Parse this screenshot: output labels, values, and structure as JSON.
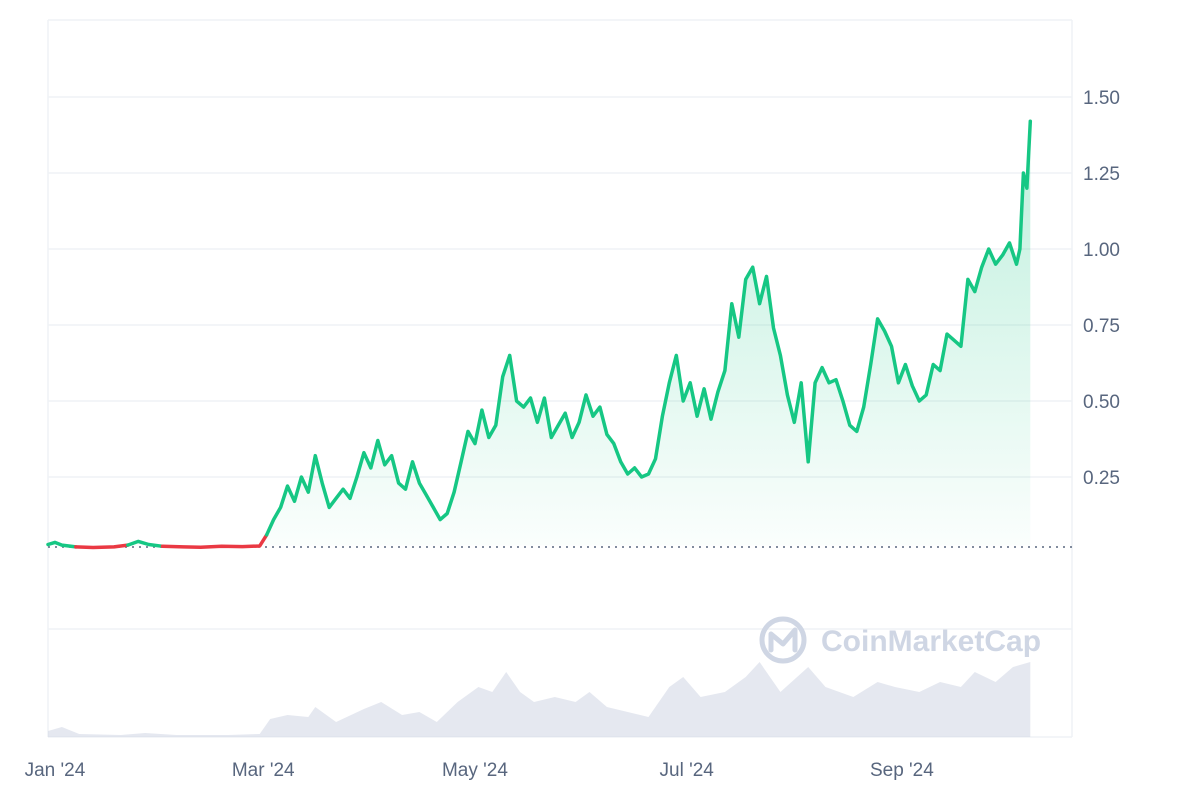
{
  "colors": {
    "up": "#16c784",
    "down": "#ea3943",
    "volume": "#cfd6e4",
    "grid": "#eff2f5",
    "tick_text": "#58667e",
    "watermark": "#cfd6e4"
  },
  "watermark": {
    "text": "CoinMarketCap",
    "icon": "coinmarketcap-logo-icon"
  },
  "chart_data": {
    "type": "area",
    "title": "",
    "xlabel": "",
    "ylabel": "",
    "grid": true,
    "legend": "none",
    "baseline_price": 0.025,
    "x_ticks": [
      {
        "label": "Jan '24",
        "date": "2024-01-01"
      },
      {
        "label": "Mar '24",
        "date": "2024-03-01"
      },
      {
        "label": "May '24",
        "date": "2024-05-01"
      },
      {
        "label": "Jul '24",
        "date": "2024-07-01"
      },
      {
        "label": "Sep '24",
        "date": "2024-09-01"
      }
    ],
    "y_ticks": [
      {
        "label": "1.50",
        "value": 1.5
      },
      {
        "label": "1.25",
        "value": 1.25
      },
      {
        "label": "1.00",
        "value": 1.0
      },
      {
        "label": "0.75",
        "value": 0.75
      },
      {
        "label": "0.50",
        "value": 0.5
      },
      {
        "label": "0.25",
        "value": 0.25
      }
    ],
    "xlim": [
      "2023-12-30",
      "2024-10-20"
    ],
    "ylim": [
      -0.3,
      1.75
    ],
    "series": [
      {
        "values": [
          [
            "2023-12-30",
            0.028
          ],
          [
            "2024-01-01",
            0.035
          ],
          [
            "2024-01-03",
            0.026
          ],
          [
            "2024-01-07",
            0.02
          ],
          [
            "2024-01-12",
            0.018
          ],
          [
            "2024-01-18",
            0.02
          ],
          [
            "2024-01-22",
            0.026
          ],
          [
            "2024-01-25",
            0.038
          ],
          [
            "2024-01-28",
            0.028
          ],
          [
            "2024-02-01",
            0.022
          ],
          [
            "2024-02-07",
            0.02
          ],
          [
            "2024-02-12",
            0.019
          ],
          [
            "2024-02-18",
            0.022
          ],
          [
            "2024-02-24",
            0.021
          ],
          [
            "2024-02-29",
            0.023
          ],
          [
            "2024-03-02",
            0.06
          ],
          [
            "2024-03-04",
            0.11
          ],
          [
            "2024-03-06",
            0.15
          ],
          [
            "2024-03-08",
            0.22
          ],
          [
            "2024-03-10",
            0.17
          ],
          [
            "2024-03-12",
            0.25
          ],
          [
            "2024-03-14",
            0.2
          ],
          [
            "2024-03-16",
            0.32
          ],
          [
            "2024-03-18",
            0.23
          ],
          [
            "2024-03-20",
            0.15
          ],
          [
            "2024-03-22",
            0.18
          ],
          [
            "2024-03-24",
            0.21
          ],
          [
            "2024-03-26",
            0.18
          ],
          [
            "2024-03-28",
            0.25
          ],
          [
            "2024-03-30",
            0.33
          ],
          [
            "2024-04-01",
            0.28
          ],
          [
            "2024-04-03",
            0.37
          ],
          [
            "2024-04-05",
            0.29
          ],
          [
            "2024-04-07",
            0.32
          ],
          [
            "2024-04-09",
            0.23
          ],
          [
            "2024-04-11",
            0.21
          ],
          [
            "2024-04-13",
            0.3
          ],
          [
            "2024-04-15",
            0.23
          ],
          [
            "2024-04-17",
            0.19
          ],
          [
            "2024-04-19",
            0.15
          ],
          [
            "2024-04-21",
            0.11
          ],
          [
            "2024-04-23",
            0.13
          ],
          [
            "2024-04-25",
            0.2
          ],
          [
            "2024-04-27",
            0.3
          ],
          [
            "2024-04-29",
            0.4
          ],
          [
            "2024-05-01",
            0.36
          ],
          [
            "2024-05-03",
            0.47
          ],
          [
            "2024-05-05",
            0.38
          ],
          [
            "2024-05-07",
            0.42
          ],
          [
            "2024-05-09",
            0.58
          ],
          [
            "2024-05-11",
            0.65
          ],
          [
            "2024-05-13",
            0.5
          ],
          [
            "2024-05-15",
            0.48
          ],
          [
            "2024-05-17",
            0.51
          ],
          [
            "2024-05-19",
            0.43
          ],
          [
            "2024-05-21",
            0.51
          ],
          [
            "2024-05-23",
            0.38
          ],
          [
            "2024-05-25",
            0.42
          ],
          [
            "2024-05-27",
            0.46
          ],
          [
            "2024-05-29",
            0.38
          ],
          [
            "2024-05-31",
            0.43
          ],
          [
            "2024-06-02",
            0.52
          ],
          [
            "2024-06-04",
            0.45
          ],
          [
            "2024-06-06",
            0.48
          ],
          [
            "2024-06-08",
            0.39
          ],
          [
            "2024-06-10",
            0.36
          ],
          [
            "2024-06-12",
            0.3
          ],
          [
            "2024-06-14",
            0.26
          ],
          [
            "2024-06-16",
            0.28
          ],
          [
            "2024-06-18",
            0.25
          ],
          [
            "2024-06-20",
            0.26
          ],
          [
            "2024-06-22",
            0.31
          ],
          [
            "2024-06-24",
            0.45
          ],
          [
            "2024-06-26",
            0.56
          ],
          [
            "2024-06-28",
            0.65
          ],
          [
            "2024-06-30",
            0.5
          ],
          [
            "2024-07-02",
            0.56
          ],
          [
            "2024-07-04",
            0.45
          ],
          [
            "2024-07-06",
            0.54
          ],
          [
            "2024-07-08",
            0.44
          ],
          [
            "2024-07-10",
            0.53
          ],
          [
            "2024-07-12",
            0.6
          ],
          [
            "2024-07-14",
            0.82
          ],
          [
            "2024-07-16",
            0.71
          ],
          [
            "2024-07-18",
            0.9
          ],
          [
            "2024-07-20",
            0.94
          ],
          [
            "2024-07-22",
            0.82
          ],
          [
            "2024-07-24",
            0.91
          ],
          [
            "2024-07-26",
            0.74
          ],
          [
            "2024-07-28",
            0.65
          ],
          [
            "2024-07-30",
            0.52
          ],
          [
            "2024-08-01",
            0.43
          ],
          [
            "2024-08-03",
            0.56
          ],
          [
            "2024-08-05",
            0.3
          ],
          [
            "2024-08-07",
            0.56
          ],
          [
            "2024-08-09",
            0.61
          ],
          [
            "2024-08-11",
            0.56
          ],
          [
            "2024-08-13",
            0.57
          ],
          [
            "2024-08-15",
            0.5
          ],
          [
            "2024-08-17",
            0.42
          ],
          [
            "2024-08-19",
            0.4
          ],
          [
            "2024-08-21",
            0.48
          ],
          [
            "2024-08-23",
            0.62
          ],
          [
            "2024-08-25",
            0.77
          ],
          [
            "2024-08-27",
            0.73
          ],
          [
            "2024-08-29",
            0.68
          ],
          [
            "2024-08-31",
            0.56
          ],
          [
            "2024-09-02",
            0.62
          ],
          [
            "2024-09-04",
            0.55
          ],
          [
            "2024-09-06",
            0.5
          ],
          [
            "2024-09-08",
            0.52
          ],
          [
            "2024-09-10",
            0.62
          ],
          [
            "2024-09-12",
            0.6
          ],
          [
            "2024-09-14",
            0.72
          ],
          [
            "2024-09-16",
            0.7
          ],
          [
            "2024-09-18",
            0.68
          ],
          [
            "2024-09-20",
            0.9
          ],
          [
            "2024-09-22",
            0.86
          ],
          [
            "2024-09-24",
            0.94
          ],
          [
            "2024-09-26",
            1.0
          ],
          [
            "2024-09-28",
            0.95
          ],
          [
            "2024-09-30",
            0.98
          ],
          [
            "2024-10-02",
            1.02
          ],
          [
            "2024-10-04",
            0.95
          ],
          [
            "2024-10-05",
            1.0
          ],
          [
            "2024-10-06",
            1.25
          ],
          [
            "2024-10-07",
            1.2
          ],
          [
            "2024-10-08",
            1.42
          ]
        ]
      }
    ],
    "volume": [
      [
        "2023-12-30",
        0.06
      ],
      [
        "2024-01-03",
        0.1
      ],
      [
        "2024-01-08",
        0.03
      ],
      [
        "2024-01-20",
        0.02
      ],
      [
        "2024-01-27",
        0.04
      ],
      [
        "2024-02-05",
        0.02
      ],
      [
        "2024-02-20",
        0.02
      ],
      [
        "2024-02-29",
        0.03
      ],
      [
        "2024-03-03",
        0.18
      ],
      [
        "2024-03-08",
        0.22
      ],
      [
        "2024-03-14",
        0.2
      ],
      [
        "2024-03-16",
        0.3
      ],
      [
        "2024-03-22",
        0.15
      ],
      [
        "2024-03-30",
        0.28
      ],
      [
        "2024-04-04",
        0.35
      ],
      [
        "2024-04-10",
        0.22
      ],
      [
        "2024-04-15",
        0.25
      ],
      [
        "2024-04-20",
        0.15
      ],
      [
        "2024-04-26",
        0.35
      ],
      [
        "2024-05-02",
        0.5
      ],
      [
        "2024-05-06",
        0.45
      ],
      [
        "2024-05-10",
        0.65
      ],
      [
        "2024-05-14",
        0.45
      ],
      [
        "2024-05-18",
        0.35
      ],
      [
        "2024-05-24",
        0.4
      ],
      [
        "2024-05-30",
        0.35
      ],
      [
        "2024-06-03",
        0.45
      ],
      [
        "2024-06-08",
        0.3
      ],
      [
        "2024-06-14",
        0.25
      ],
      [
        "2024-06-20",
        0.2
      ],
      [
        "2024-06-26",
        0.5
      ],
      [
        "2024-06-30",
        0.6
      ],
      [
        "2024-07-05",
        0.4
      ],
      [
        "2024-07-12",
        0.45
      ],
      [
        "2024-07-18",
        0.6
      ],
      [
        "2024-07-22",
        0.75
      ],
      [
        "2024-07-28",
        0.45
      ],
      [
        "2024-08-05",
        0.7
      ],
      [
        "2024-08-10",
        0.5
      ],
      [
        "2024-08-18",
        0.4
      ],
      [
        "2024-08-25",
        0.55
      ],
      [
        "2024-08-30",
        0.5
      ],
      [
        "2024-09-06",
        0.45
      ],
      [
        "2024-09-12",
        0.55
      ],
      [
        "2024-09-18",
        0.5
      ],
      [
        "2024-09-22",
        0.65
      ],
      [
        "2024-09-28",
        0.55
      ],
      [
        "2024-10-03",
        0.7
      ],
      [
        "2024-10-08",
        0.75
      ]
    ]
  }
}
